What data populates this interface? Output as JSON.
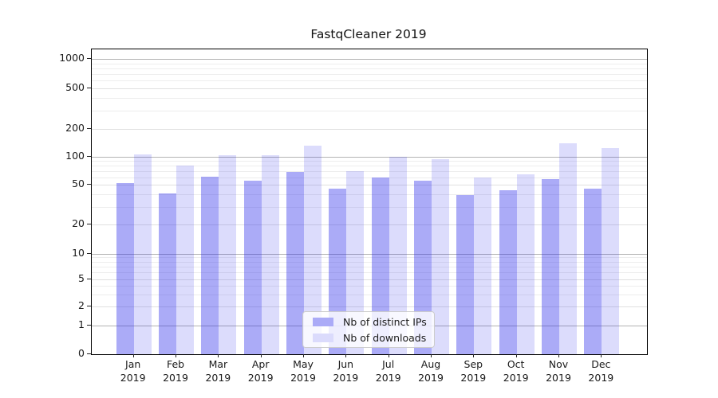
{
  "title": "FastqCleaner 2019",
  "colors": {
    "ips_bar_fill": "rgba(45,45,235,0.40)",
    "downloads_bar_fill": "rgba(45,45,235,0.17)",
    "ips_swatch": "#ababf7",
    "downloads_swatch": "#dbdbfc",
    "grid_major": "#b3b3b3",
    "grid_labeled": "#e0e0e0",
    "grid_minor": "#ededed",
    "axis": "#000000"
  },
  "legend": {
    "items": [
      {
        "key": "ips",
        "label": "Nb of distinct IPs"
      },
      {
        "key": "downloads",
        "label": "Nb of downloads"
      }
    ]
  },
  "y_axis": {
    "tick_labels": [
      "0",
      "1",
      "2",
      "5",
      "10",
      "20",
      "50",
      "100",
      "200",
      "500",
      "1000"
    ]
  },
  "chart_data": {
    "type": "bar",
    "title": "FastqCleaner 2019",
    "categories": [
      "Jan 2019",
      "Feb 2019",
      "Mar 2019",
      "Apr 2019",
      "May 2019",
      "Jun 2019",
      "Jul 2019",
      "Aug 2019",
      "Sep 2019",
      "Oct 2019",
      "Nov 2019",
      "Dec 2019"
    ],
    "series": [
      {
        "name": "Nb of distinct IPs",
        "key": "ips",
        "values": [
          52,
          41,
          61,
          55,
          68,
          46,
          60,
          55,
          39,
          44,
          57,
          46
        ]
      },
      {
        "name": "Nb of downloads",
        "key": "downloads",
        "values": [
          107,
          80,
          104,
          104,
          131,
          70,
          100,
          94,
          60,
          65,
          139,
          124
        ]
      }
    ],
    "yscale": "symlog",
    "yticks": [
      0,
      1,
      2,
      5,
      10,
      20,
      50,
      100,
      200,
      500,
      1000
    ],
    "ylim": [
      0,
      1400
    ],
    "grid": "horizontal, log minors",
    "legend_position": "lower-center-inside",
    "xlabel": "",
    "ylabel": ""
  }
}
